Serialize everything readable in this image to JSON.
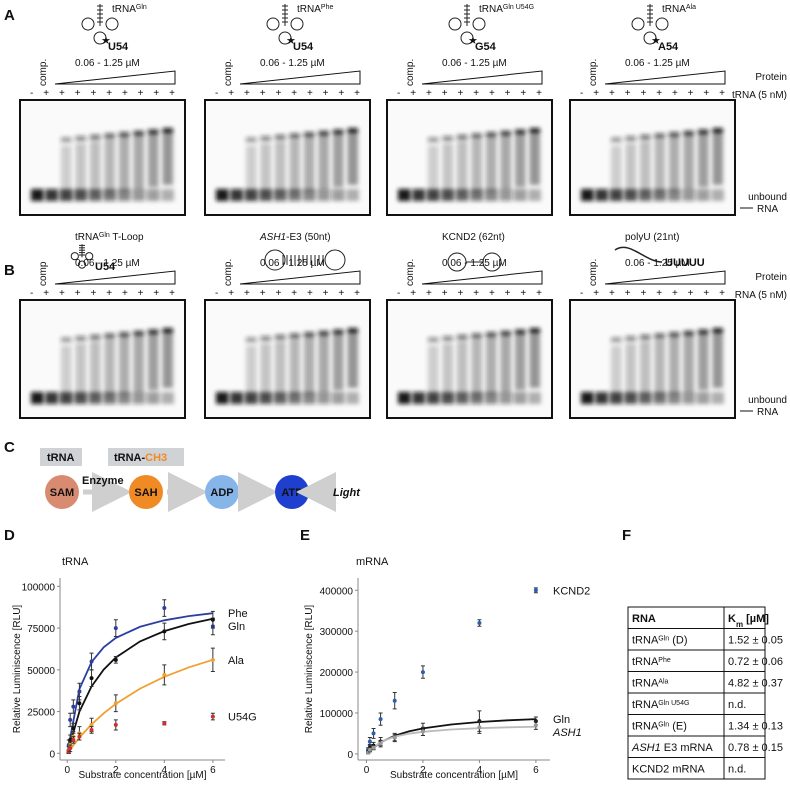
{
  "panel_labels": [
    "A",
    "B",
    "C",
    "D",
    "E",
    "F"
  ],
  "gels_a": {
    "items": [
      {
        "name": "tRNA",
        "sup": "Gln",
        "mutation": "U54",
        "range": "0.06 - 1.25 µM",
        "comp": "comp.",
        "lanes": "- + + + + + + + + +"
      },
      {
        "name": "tRNA",
        "sup": "Phe",
        "mutation": "U54",
        "range": "0.06 - 1.25 µM",
        "comp": "comp.",
        "lanes": "- + + + + + + + + +"
      },
      {
        "name": "tRNA",
        "sup": "Gln U54G",
        "mutation": "G54",
        "range": "0.06 - 1.25 µM",
        "comp": "comp.",
        "lanes": "- + + + + + + + + +"
      },
      {
        "name": "tRNA",
        "sup": "Ala",
        "mutation": "A54",
        "range": "0.06 - 1.25 µM",
        "comp": "comp.",
        "lanes": "- + + + + + + + + +"
      }
    ],
    "row_labels": [
      "Protein",
      "tRNA (5 nM)"
    ],
    "unbound": [
      "unbound",
      "RNA"
    ]
  },
  "gels_b": {
    "items": [
      {
        "name": "tRNA",
        "sup": "Gln",
        "suffix": " T-Loop",
        "mutation": "U54",
        "range": "0.06 - 1.25 µM",
        "comp": "comp",
        "lanes": "- + + + + + + + + +"
      },
      {
        "name": "ASH1",
        "italic": true,
        "suffix": "-E3 (50nt)",
        "range": "0.06 - 1.25 µM",
        "comp": "comp.",
        "lanes": "- + + + + + + + + +"
      },
      {
        "name": "KCND2 (62nt)",
        "range": "0.06 - 1.25 µM",
        "comp": "comp.",
        "lanes": "- + + + + + + + + +"
      },
      {
        "name": "polyU (21nt)",
        "mutation": "UUUUU",
        "range": "0.06 - 1.25 µM",
        "comp": "comp.",
        "lanes": "- + + + + + + + + +"
      }
    ],
    "row_labels": [
      "Protein",
      "RNA (5 nM)"
    ],
    "unbound": [
      "unbound",
      "RNA"
    ]
  },
  "scheme": {
    "box1": "tRNA",
    "box2": "tRNA-",
    "box2_mark": "CH3",
    "nodes": [
      "SAM",
      "SAH",
      "ADP",
      "ATP"
    ],
    "enzyme": "Enzyme",
    "output": "Light"
  },
  "chart_data": [
    {
      "type": "scatter",
      "title": "tRNA",
      "x_label": "Substrate concentration [µM]",
      "y_label": "Relative Luminiscence [RLU]",
      "x": [
        0.06,
        0.12,
        0.25,
        0.5,
        1,
        2,
        4,
        6
      ],
      "xlim": [
        -0.3,
        6.5
      ],
      "xticks": [
        0,
        2,
        4,
        6
      ],
      "ylim": [
        -4000,
        105000
      ],
      "yticks": [
        0,
        25000,
        50000,
        75000,
        100000
      ],
      "fit_x": [
        0,
        0.5,
        1,
        1.5,
        2,
        3,
        4,
        5,
        6
      ],
      "series": [
        {
          "name": "Phe",
          "color": "#2b3fa0",
          "values": [
            5000,
            20000,
            28000,
            37000,
            55000,
            75000,
            87000,
            76000
          ],
          "errors": [
            3000,
            4000,
            4000,
            5000,
            5000,
            5000,
            5000,
            5000
          ],
          "fit_values": [
            0,
            38525,
            54651,
            63514,
            69118,
            75806,
            79661,
            82168,
            83929
          ]
        },
        {
          "name": "Gln",
          "color": "#111111",
          "values": [
            2000,
            8000,
            15000,
            30000,
            45000,
            56000,
            73000,
            80000
          ],
          "errors": [
            2000,
            3000,
            3000,
            4000,
            5000,
            2000,
            5000,
            5000
          ],
          "fit_values": [
            0,
            25000,
            40079,
            50166,
            57386,
            67035,
            73188,
            77454,
            80585
          ]
        },
        {
          "name": "Ala",
          "color": "#f0a030",
          "values": [
            2000,
            5000,
            10000,
            12000,
            17000,
            30000,
            47000,
            56000
          ],
          "errors": [
            2000,
            2000,
            3000,
            4000,
            4000,
            5000,
            6000,
            7000
          ],
          "fit_values": [
            0,
            9492,
            17354,
            23972,
            29619,
            38747,
            45805,
            51426,
            56008
          ]
        },
        {
          "name": "U54G",
          "color": "#d03030",
          "values": [
            1000,
            3000,
            8000,
            10000,
            14000,
            17000,
            18000,
            22000
          ],
          "errors": [
            1000,
            2000,
            2000,
            2000,
            2000,
            3000,
            1000,
            2000
          ]
        }
      ]
    },
    {
      "type": "scatter",
      "title": "mRNA",
      "x_label": "Substrate concentration [µM]",
      "y_label": "Relative Luminiscence [RLU]",
      "x": [
        0.06,
        0.12,
        0.25,
        0.5,
        1,
        2,
        4,
        6
      ],
      "xlim": [
        -0.3,
        6.5
      ],
      "xticks": [
        0,
        2,
        4,
        6
      ],
      "ylim": [
        -15000,
        430000
      ],
      "yticks": [
        0,
        100000,
        200000,
        300000,
        400000
      ],
      "fit_x": [
        0,
        0.5,
        1,
        1.5,
        2,
        3,
        4,
        5,
        6
      ],
      "series": [
        {
          "name": "KCND2",
          "color": "#2b5fb0",
          "values": [
            10000,
            30000,
            50000,
            85000,
            130000,
            200000,
            320000,
            400000
          ],
          "errors": [
            5000,
            10000,
            12000,
            15000,
            20000,
            15000,
            8000,
            6000
          ]
        },
        {
          "name": "Gln",
          "color": "#111111",
          "values": [
            5000,
            15000,
            20000,
            30000,
            40000,
            60000,
            80000,
            80000
          ],
          "errors": [
            4000,
            8000,
            8000,
            10000,
            10000,
            15000,
            25000,
            10000
          ],
          "fit_values": [
            0,
            28261,
            44444,
            54930,
            62275,
            71889,
            77903,
            82019,
            85014
          ]
        },
        {
          "name": "ASH1",
          "color": "#999999",
          "italic": true,
          "values": [
            3000,
            10000,
            15000,
            25000,
            40000,
            55000,
            65000,
            70000
          ],
          "errors": [
            3000,
            5000,
            5000,
            8000,
            8000,
            10000,
            15000,
            10000
          ],
          "fit_values": [
            0,
            29297,
            42135,
            49342,
            53957,
            59524,
            62762,
            64881,
            66372
          ]
        }
      ]
    }
  ],
  "table": {
    "header": {
      "rna": "RNA",
      "km": "K",
      "km_sub": "m",
      "km_unit": " [µM]"
    },
    "rows": [
      {
        "name": "tRNA",
        "sup": "Gln",
        "suffix": " (D)",
        "km": "1.52 ± 0.05"
      },
      {
        "name": "tRNA",
        "sup": "Phe",
        "km": "0.72 ± 0.06"
      },
      {
        "name": "tRNA",
        "sup": "Ala",
        "km": "4.82 ± 0.37"
      },
      {
        "name": "tRNA",
        "sup": "Gln U54G",
        "km": "n.d."
      },
      {
        "name": "tRNA",
        "sup": "Gln",
        "suffix": " (E)",
        "km": "1.34 ± 0.13"
      },
      {
        "name": "ASH1",
        "italic": true,
        "suffix": " E3 mRNA",
        "km": "0.78 ± 0.15"
      },
      {
        "name": "KCND2 mRNA",
        "km": "n.d."
      }
    ]
  }
}
